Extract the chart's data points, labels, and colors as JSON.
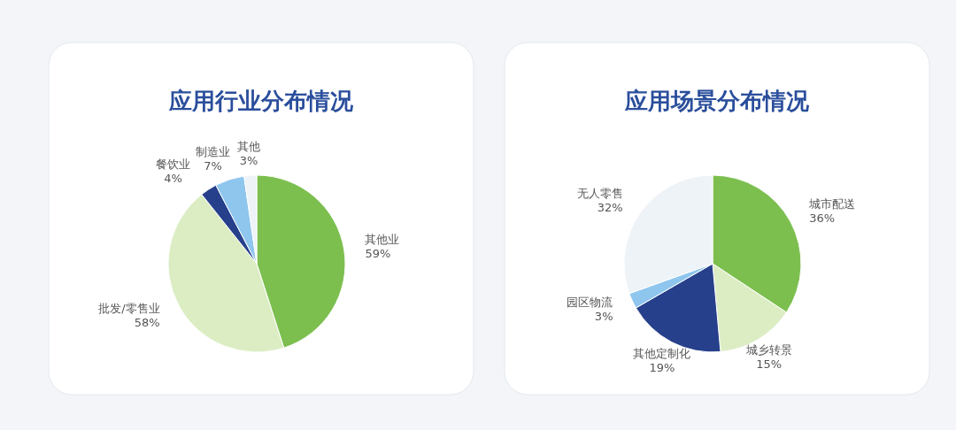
{
  "chart_data": [
    {
      "type": "pie",
      "title": "应用行业分布情况",
      "categories": [
        "其他业",
        "批发/零售业",
        "餐饮业",
        "制造业",
        "其他"
      ],
      "values": [
        59,
        58,
        4,
        7,
        3
      ],
      "value_labels": [
        "59%",
        "58%",
        "4%",
        "7%",
        "3%"
      ],
      "colors": [
        "#7cbf4f",
        "#dcedc4",
        "#27408b",
        "#8fc6ee",
        "#eef3f8"
      ]
    },
    {
      "type": "pie",
      "title": "应用场景分布情况",
      "categories": [
        "城市配送",
        "城乡转景",
        "其他定制化",
        "园区物流",
        "无人零售"
      ],
      "values": [
        36,
        15,
        19,
        3,
        32
      ],
      "value_labels": [
        "36%",
        "15%",
        "19%",
        "3%",
        "32%"
      ],
      "colors": [
        "#7cbf4f",
        "#dcedc4",
        "#27408b",
        "#8fc6ee",
        "#eef3f8"
      ]
    }
  ]
}
